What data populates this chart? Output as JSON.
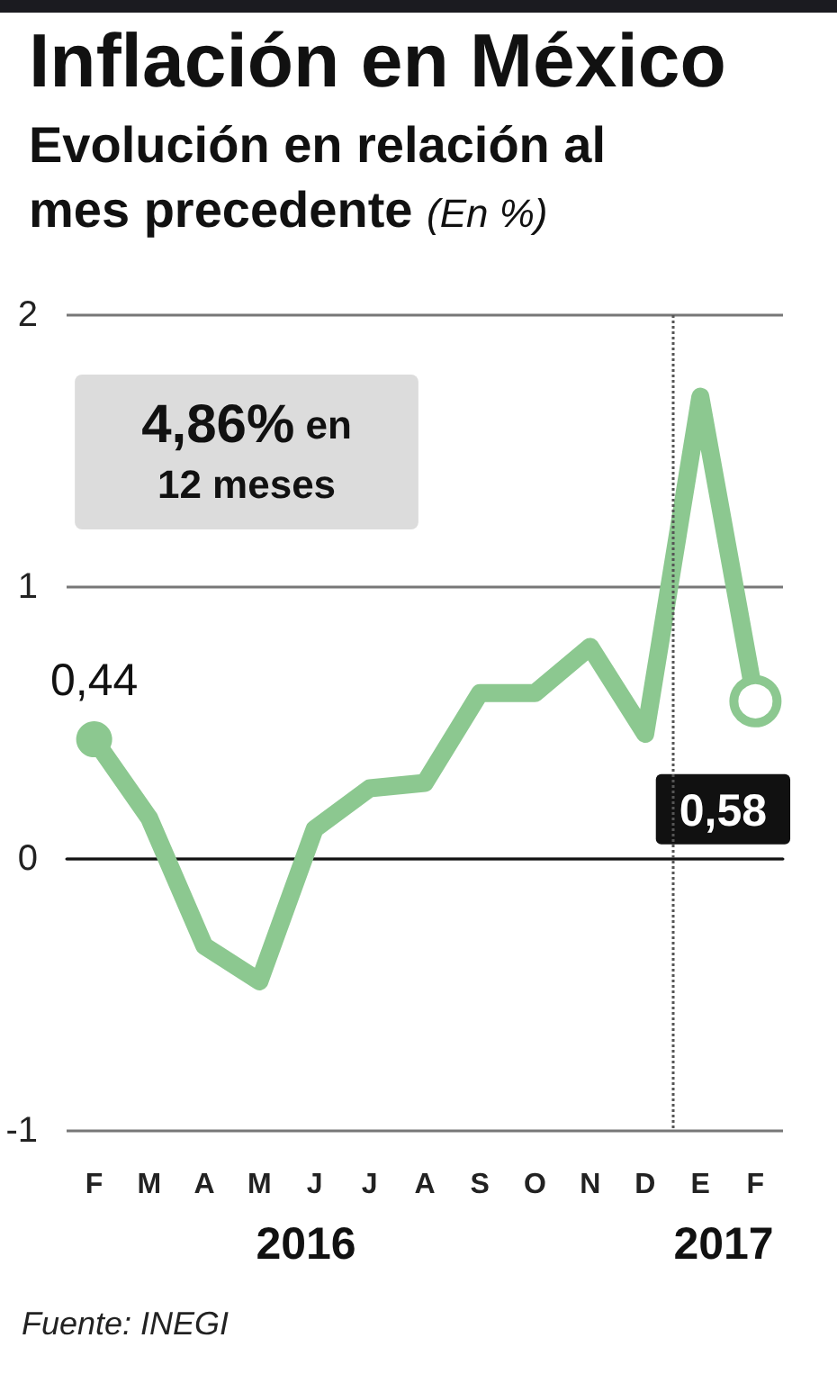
{
  "chart_data": {
    "type": "line",
    "title": "Inflación en México",
    "subtitle": "Evolución en relación al mes precedente (En %)",
    "categories": [
      "F",
      "M",
      "A",
      "M",
      "J",
      "J",
      "A",
      "S",
      "O",
      "N",
      "D",
      "E",
      "F"
    ],
    "series": [
      {
        "color": "#8cc890",
        "values": [
          0.44,
          0.15,
          -0.32,
          -0.45,
          0.11,
          0.26,
          0.28,
          0.61,
          0.61,
          0.78,
          0.46,
          1.7,
          0.58
        ],
        "value_labels": [
          "0,44",
          null,
          null,
          null,
          null,
          null,
          null,
          null,
          null,
          null,
          null,
          null,
          "0,58"
        ]
      }
    ],
    "ylim": [
      -1,
      2
    ],
    "yticks": [
      -1,
      0,
      1,
      2
    ],
    "grid": "y",
    "line_style": "solid",
    "ref_lines": [
      {
        "axis": "x",
        "value": "E",
        "color": "#555555",
        "line_style": "dotted"
      }
    ],
    "annotations": [
      "4,86% en 12 meses",
      "2016",
      "2017",
      "Fuente: INEGI"
    ]
  }
}
